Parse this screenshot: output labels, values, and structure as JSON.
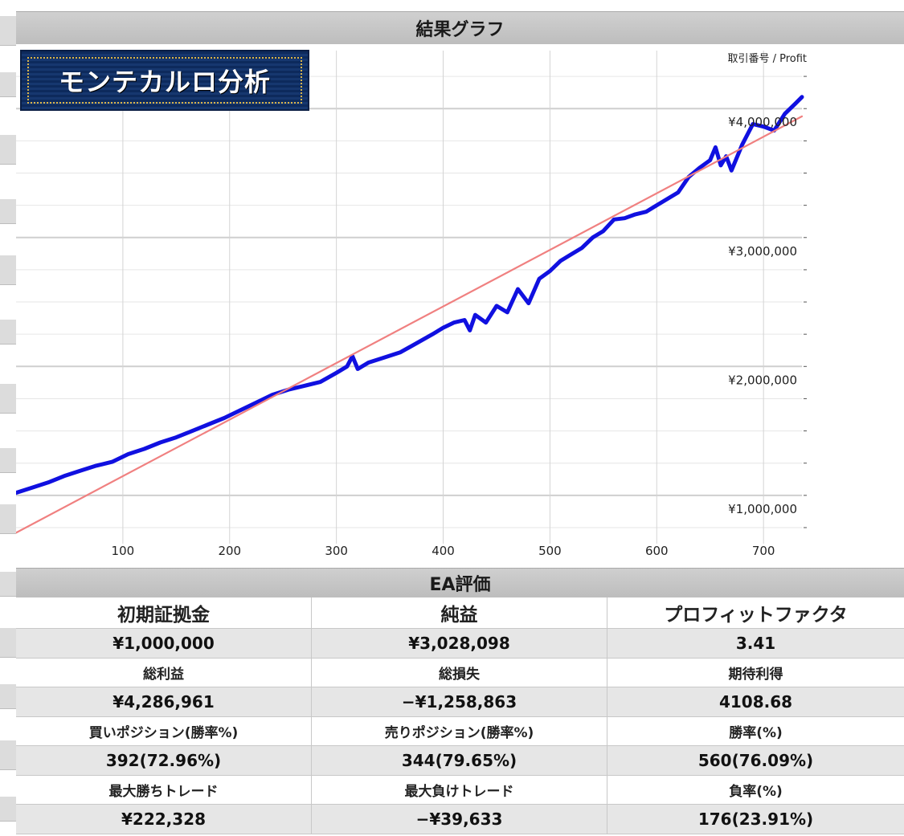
{
  "graph_panel": {
    "title": "結果グラフ",
    "badge_text": "モンテカルロ分析",
    "series_header": "取引番号 / Profit"
  },
  "chart_data": {
    "type": "line",
    "title": "",
    "xlabel": "",
    "ylabel": "",
    "x_ticks": [
      100,
      200,
      300,
      400,
      500,
      600,
      700
    ],
    "x_tick_labels": [
      "100",
      "200",
      "300",
      "400",
      "500",
      "600",
      "700"
    ],
    "y_ticks": [
      1000000,
      2000000,
      3000000,
      4000000
    ],
    "y_tick_labels": [
      "¥1,000,000",
      "¥2,000,000",
      "¥3,000,000",
      "¥4,000,000"
    ],
    "xlim": [
      0,
      736
    ],
    "ylim": [
      700000,
      4450000
    ],
    "grid": true,
    "series": [
      {
        "color": "#1010e0",
        "x": [
          0,
          15,
          30,
          45,
          60,
          75,
          90,
          105,
          120,
          135,
          150,
          165,
          180,
          195,
          210,
          225,
          240,
          255,
          270,
          285,
          300,
          310,
          315,
          320,
          330,
          345,
          360,
          375,
          390,
          400,
          410,
          420,
          425,
          430,
          440,
          450,
          460,
          470,
          480,
          490,
          500,
          510,
          520,
          530,
          540,
          550,
          560,
          570,
          580,
          590,
          600,
          610,
          620,
          630,
          640,
          650,
          655,
          660,
          665,
          670,
          680,
          690,
          700,
          710,
          720,
          730,
          736
        ],
        "y": [
          1020000,
          1060000,
          1100000,
          1150000,
          1190000,
          1230000,
          1260000,
          1320000,
          1360000,
          1410000,
          1450000,
          1500000,
          1550000,
          1600000,
          1660000,
          1720000,
          1780000,
          1820000,
          1850000,
          1880000,
          1950000,
          2000000,
          2080000,
          1980000,
          2030000,
          2070000,
          2110000,
          2180000,
          2250000,
          2300000,
          2340000,
          2360000,
          2280000,
          2400000,
          2340000,
          2470000,
          2420000,
          2600000,
          2490000,
          2680000,
          2740000,
          2820000,
          2870000,
          2920000,
          3000000,
          3050000,
          3140000,
          3150000,
          3180000,
          3200000,
          3250000,
          3300000,
          3350000,
          3470000,
          3540000,
          3600000,
          3700000,
          3560000,
          3630000,
          3520000,
          3720000,
          3880000,
          3860000,
          3830000,
          3960000,
          4040000,
          4090000
        ]
      },
      {
        "color": "#f08080",
        "x": [
          0,
          736
        ],
        "y": [
          710000,
          3940000
        ]
      }
    ]
  },
  "ea_panel": {
    "title": "EA評価",
    "rows": [
      {
        "kind": "label",
        "big": true,
        "cells": [
          "初期証拠金",
          "純益",
          "プロフィットファクタ"
        ]
      },
      {
        "kind": "value",
        "cells": [
          "¥1,000,000",
          "¥3,028,098",
          "3.41"
        ]
      },
      {
        "kind": "label",
        "cells": [
          "総利益",
          "総損失",
          "期待利得"
        ]
      },
      {
        "kind": "value",
        "cells": [
          "¥4,286,961",
          "−¥1,258,863",
          "4108.68"
        ]
      },
      {
        "kind": "label",
        "cells": [
          "買いポジション(勝率%)",
          "売りポジション(勝率%)",
          "勝率(%)"
        ]
      },
      {
        "kind": "value",
        "cells": [
          "392(72.96%)",
          "344(79.65%)",
          "560(76.09%)"
        ]
      },
      {
        "kind": "label",
        "cells": [
          "最大勝ちトレード",
          "最大負けトレード",
          "負率(%)"
        ]
      },
      {
        "kind": "value",
        "cells": [
          "¥222,328",
          "−¥39,633",
          "176(23.91%)"
        ]
      }
    ]
  }
}
